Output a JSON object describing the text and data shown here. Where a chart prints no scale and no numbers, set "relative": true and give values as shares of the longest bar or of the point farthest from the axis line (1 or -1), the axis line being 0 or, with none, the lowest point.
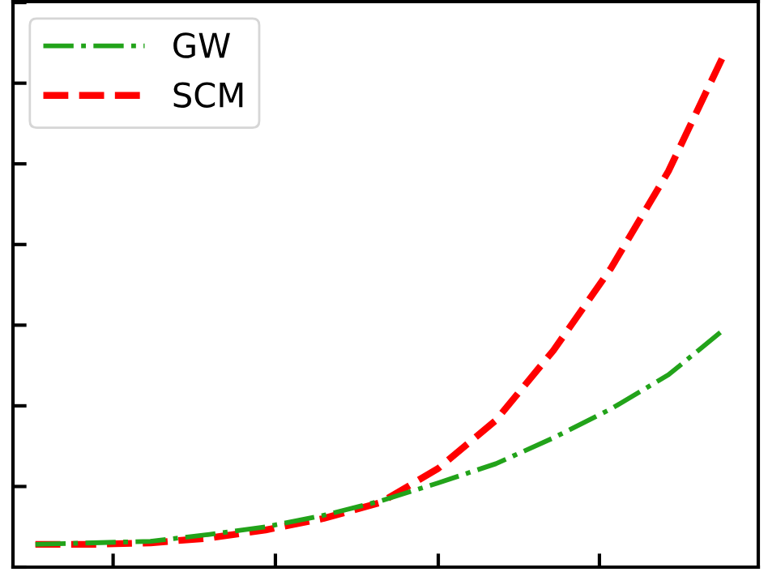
{
  "chart_data": {
    "type": "line",
    "relative": true,
    "categories": [
      null,
      null,
      null,
      null,
      null,
      null,
      null,
      null,
      null,
      null,
      null,
      null,
      null
    ],
    "series": [
      {
        "name": "GW",
        "color": "#22a31a",
        "line_style": "dashdot",
        "values": [
          0.044,
          0.047,
          0.05,
          0.063,
          0.078,
          0.1,
          0.128,
          0.163,
          0.2,
          0.25,
          0.306,
          0.372,
          0.463
        ]
      },
      {
        "name": "SCM",
        "color": "#ff0000",
        "line_style": "dashed",
        "values": [
          0.044,
          0.044,
          0.047,
          0.056,
          0.072,
          0.094,
          0.125,
          0.191,
          0.284,
          0.419,
          0.578,
          0.766,
          1.0
        ]
      }
    ],
    "legend": "top left",
    "tick_labels": false,
    "grid": false,
    "marker": "none"
  }
}
